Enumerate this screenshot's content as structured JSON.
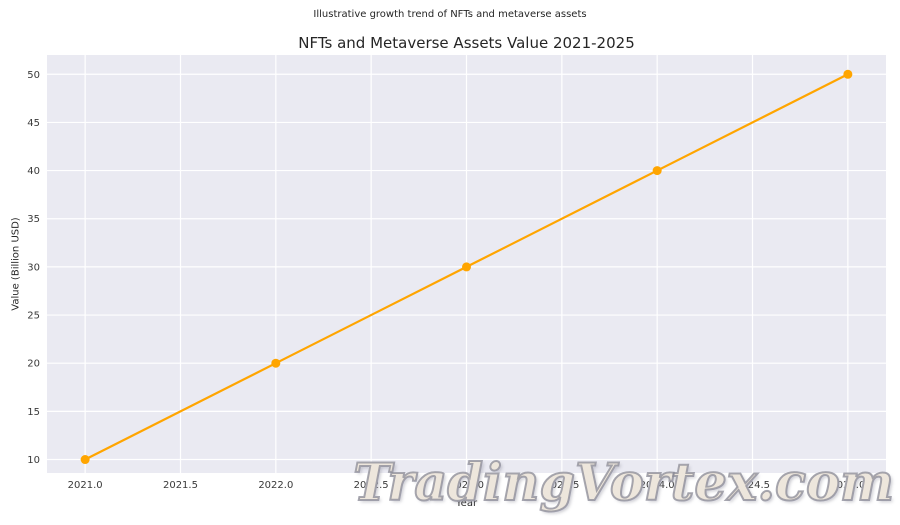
{
  "watermark": {
    "text": "TradingVortex.com"
  },
  "chart_data": {
    "type": "line",
    "title": "NFTs and Metaverse Assets Value 2021-2025",
    "subtitle": "Illustrative growth trend of NFTs and metaverse assets",
    "xlabel": "Year",
    "ylabel": "Value (Billion USD)",
    "series": [
      {
        "name": "NFTs and metaverse assets value",
        "x": [
          2021,
          2022,
          2023,
          2024,
          2025
        ],
        "y": [
          10,
          20,
          30,
          40,
          50
        ],
        "color": "#FFA500",
        "marker": "circle"
      }
    ],
    "xlim": [
      2020.8,
      2025.2
    ],
    "ylim": [
      8.6,
      52.0
    ],
    "xticks": {
      "values": [
        2021,
        2021.5,
        2022,
        2022.5,
        2023,
        2023.5,
        2024,
        2024.5,
        2025
      ],
      "labels": [
        "2021.0",
        "2021.5",
        "2022.0",
        "2022.5",
        "2023.0",
        "2023.5",
        "2024.0",
        "2024.5",
        "2025.0"
      ]
    },
    "yticks": {
      "values": [
        10,
        15,
        20,
        25,
        30,
        35,
        40,
        45,
        50
      ],
      "labels": [
        "10",
        "15",
        "20",
        "25",
        "30",
        "35",
        "40",
        "45",
        "50"
      ]
    },
    "grid": true,
    "legend": null,
    "plot_bg_color": "#EAEAF2",
    "grid_color": "#FFFFFF",
    "tick_label_color": "#3a3a3a"
  }
}
